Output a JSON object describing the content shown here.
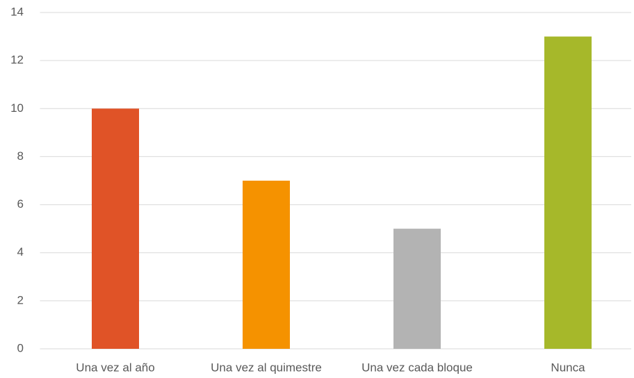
{
  "chart_data": {
    "type": "bar",
    "categories": [
      "Una vez al año",
      "Una vez al quimestre",
      "Una vez cada bloque",
      "Nunca"
    ],
    "values": [
      10,
      7,
      5,
      13
    ],
    "colors": [
      "#e05327",
      "#f59200",
      "#b3b3b3",
      "#a6b82a"
    ],
    "ylim": [
      0,
      14
    ],
    "yticks": [
      0,
      2,
      4,
      6,
      8,
      10,
      12,
      14
    ],
    "grid": true
  }
}
